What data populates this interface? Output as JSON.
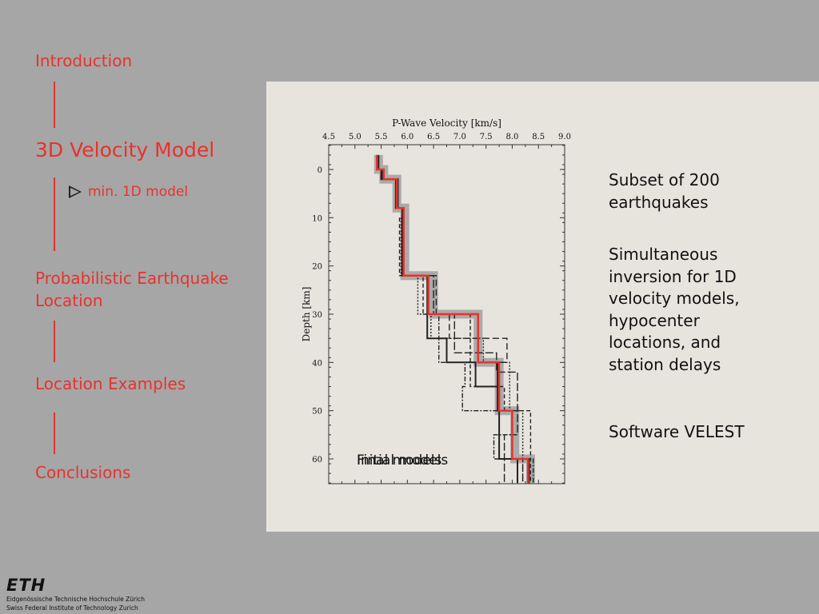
{
  "nav": {
    "intro": "Introduction",
    "velocity": "3D Velocity Model",
    "sub_item": "min. 1D model",
    "probabilistic_line1": "Probabilistic Earthquake",
    "probabilistic_line2": "Location",
    "examples": "Location Examples",
    "conclusions": "Conclusions"
  },
  "content": {
    "p1": [
      "Subset of 200",
      "earthquakes"
    ],
    "p2": [
      "Simultaneous",
      "inversion for 1D",
      "velocity models,",
      "hypocenter",
      "locations, and",
      "station delays"
    ],
    "p3": [
      "Software VELEST"
    ]
  },
  "logo": {
    "mark": "ETH",
    "line1": "Eidgenössische Technische Hochschule Zürich",
    "line2": "Swiss Federal Institute of Technology Zurich"
  },
  "colors": {
    "accent": "#e8322d",
    "background": "#a6a6a6",
    "panel": "#e6e4dd",
    "band": "#a0a0a0"
  },
  "chart_data": {
    "type": "line",
    "title": "P-Wave Velocity [km/s]",
    "ylabel": "Depth [km]",
    "xlim": [
      4.5,
      9.0
    ],
    "ylim": [
      0,
      65
    ],
    "x_ticks": [
      "4.5",
      "5.0",
      "5.5",
      "6.0",
      "6.5",
      "7.0",
      "7.5",
      "8.0",
      "8.5",
      "9.0"
    ],
    "y_ticks": [
      "0",
      "10",
      "20",
      "30",
      "40",
      "50",
      "60"
    ],
    "y_tick_values": [
      0,
      10,
      20,
      30,
      40,
      50,
      60
    ],
    "annotations": [
      "Initial models",
      "Final models"
    ],
    "series": [
      {
        "name": "",
        "role": "band",
        "color": "#a0a0a0",
        "x": [
          5.45,
          5.45,
          5.55,
          5.55,
          5.8,
          5.8,
          5.95,
          5.95,
          6.5,
          6.5,
          7.35,
          7.35,
          7.75,
          7.75,
          8.05,
          8.05,
          8.35,
          8.35
        ],
        "y": [
          -3,
          0,
          0,
          2,
          2,
          8,
          8,
          22,
          22,
          30,
          30,
          40,
          40,
          50,
          50,
          60,
          60,
          65
        ]
      },
      {
        "name": "",
        "role": "final",
        "color": "#222222",
        "dash": "",
        "x": [
          5.42,
          5.42,
          5.5,
          5.5,
          5.78,
          5.78,
          5.92,
          5.92,
          6.4,
          6.4,
          7.35,
          7.35,
          7.72,
          7.72,
          8.0,
          8.0,
          8.32,
          8.32
        ],
        "y": [
          -3,
          0,
          0,
          2,
          2,
          8,
          8,
          22,
          22,
          30,
          30,
          40,
          40,
          50,
          50,
          60,
          60,
          65
        ]
      },
      {
        "name": "",
        "role": "final",
        "color": "#222222",
        "dash": "",
        "x": [
          5.45,
          5.45,
          5.52,
          5.52,
          5.82,
          5.82,
          5.9,
          5.9,
          6.38,
          6.38,
          6.75,
          6.75,
          7.3,
          7.3,
          7.75,
          7.75,
          8.1,
          8.1
        ],
        "y": [
          -3,
          0,
          0,
          2,
          2,
          8,
          8,
          22,
          22,
          35,
          35,
          40,
          40,
          45,
          45,
          60,
          60,
          65
        ]
      },
      {
        "name": "",
        "role": "initial",
        "color": "#222222",
        "dash": "8,4",
        "x": [
          5.9,
          5.9,
          6.55,
          6.55,
          6.8,
          6.8,
          7.9,
          7.9,
          7.75,
          7.75,
          8.2,
          8.2
        ],
        "y": [
          10,
          22,
          22,
          30,
          30,
          35,
          35,
          40,
          40,
          60,
          60,
          65
        ]
      },
      {
        "name": "",
        "role": "initial",
        "color": "#222222",
        "dash": "5,3",
        "x": [
          5.85,
          5.85,
          6.3,
          6.3,
          7.2,
          7.2,
          7.2,
          7.2,
          7.85,
          7.85,
          8.35,
          8.35
        ],
        "y": [
          10,
          22,
          22,
          30,
          30,
          40,
          40,
          45,
          45,
          50,
          50,
          65
        ]
      },
      {
        "name": "",
        "role": "initial",
        "color": "#222222",
        "dash": "2,2",
        "x": [
          5.88,
          5.88,
          6.2,
          6.2,
          6.45,
          6.45,
          7.45,
          7.45,
          7.95,
          7.95,
          8.2,
          8.2
        ],
        "y": [
          10,
          22,
          22,
          30,
          30,
          35,
          35,
          40,
          40,
          50,
          50,
          65
        ]
      },
      {
        "name": "",
        "role": "initial",
        "color": "#222222",
        "dash": "6,2,2,2",
        "x": [
          5.92,
          5.92,
          6.4,
          6.4,
          6.6,
          6.6,
          7.1,
          7.1,
          7.05,
          7.05,
          8.0,
          8.0,
          7.65,
          7.65,
          8.4,
          8.4
        ],
        "y": [
          10,
          22,
          22,
          30,
          30,
          40,
          40,
          45,
          45,
          50,
          50,
          55,
          55,
          60,
          60,
          65
        ]
      },
      {
        "name": "",
        "role": "initial",
        "color": "#222222",
        "dash": "10,3",
        "x": [
          5.9,
          5.9,
          6.5,
          6.5,
          6.9,
          6.9,
          7.7,
          7.7,
          8.1,
          8.1,
          7.85,
          7.85
        ],
        "y": [
          10,
          22,
          22,
          30,
          30,
          38,
          38,
          42,
          42,
          55,
          55,
          65
        ]
      },
      {
        "name": "",
        "role": "min1d",
        "color": "#e8322d",
        "dash": "",
        "x": [
          5.42,
          5.42,
          5.55,
          5.55,
          5.8,
          5.8,
          5.93,
          5.93,
          6.4,
          6.4,
          7.35,
          7.35,
          7.75,
          7.75,
          8.0,
          8.0,
          8.3,
          8.3
        ],
        "y": [
          -3,
          0,
          0,
          2,
          2,
          8,
          8,
          22,
          22,
          30,
          30,
          40,
          40,
          50,
          50,
          60,
          60,
          65
        ]
      }
    ]
  }
}
